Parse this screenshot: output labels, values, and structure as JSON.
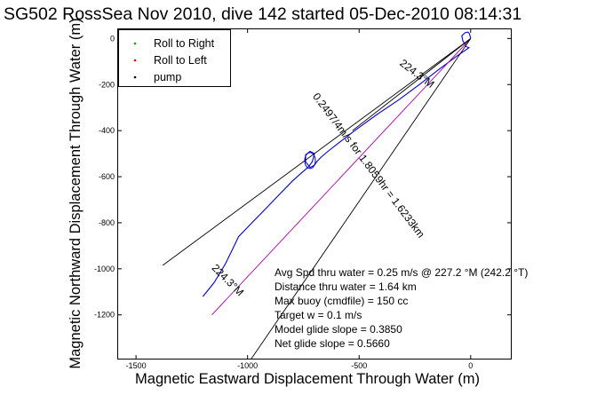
{
  "chart_data": {
    "type": "line",
    "title": "SG502 RossSea Nov 2010, dive 142 started 05-Dec-2010 08:14:31",
    "xlabel": "Magnetic Eastward Displacement Through Water (m)",
    "ylabel": "Magnetic Northward Displacement Through Water (m)",
    "xlim": [
      -1580,
      180
    ],
    "ylim": [
      -1390,
      40
    ],
    "xticks": [
      -1500,
      -1000,
      -500,
      0
    ],
    "yticks": [
      0,
      -200,
      -400,
      -600,
      -800,
      -1000,
      -1200
    ],
    "grid": false,
    "legend": {
      "position": "top-left",
      "entries": [
        {
          "label": "Roll to Right",
          "color": "#00aa00",
          "marker": "dot"
        },
        {
          "label": "Roll to Left",
          "color": "#ff0000",
          "marker": "dot"
        },
        {
          "label": "pump",
          "color": "#000000",
          "marker": "dot"
        }
      ]
    },
    "series": [
      {
        "color": "#0000cc",
        "x": [
          0,
          -5,
          -12,
          -25,
          -40,
          -35,
          -20,
          -8,
          -60,
          -150,
          -230,
          -320,
          -420,
          -470,
          -520,
          -560,
          -600,
          -640,
          -670,
          -690,
          -700,
          -720,
          -740,
          -740,
          -720,
          -700,
          -710,
          -730,
          -760,
          -800,
          -860,
          -920,
          -980,
          -1040,
          -1070,
          -1100,
          -1150,
          -1200
        ],
        "y": [
          0,
          20,
          28,
          25,
          12,
          -10,
          -35,
          -40,
          -75,
          -140,
          -200,
          -265,
          -330,
          -365,
          -400,
          -430,
          -460,
          -490,
          -515,
          -535,
          -550,
          -560,
          -535,
          -505,
          -490,
          -500,
          -535,
          -560,
          -585,
          -620,
          -680,
          -740,
          -800,
          -860,
          -920,
          -980,
          -1060,
          -1120
        ]
      },
      {
        "color": "#aa00aa",
        "x": [
          0,
          -1160
        ],
        "y": [
          0,
          -1200
        ]
      },
      {
        "color": "#000000",
        "x": [
          0,
          -1380
        ],
        "y": [
          0,
          -985
        ]
      },
      {
        "color": "#000000",
        "x": [
          0,
          -990
        ],
        "y": [
          0,
          -1400
        ]
      },
      {
        "color": "#000000",
        "x": [
          0,
          -530
        ],
        "y": [
          0,
          -400
        ]
      }
    ],
    "track_labels": [
      {
        "text": "224.3°M",
        "x": -250,
        "y": -165,
        "angle": 37
      },
      {
        "text": "0.2497/4m/s for 1.8059hr = 1.6233km",
        "x": -470,
        "y": -560,
        "angle": 53
      },
      {
        "text": "224.3°M",
        "x": -1100,
        "y": -1060,
        "angle": 45
      }
    ],
    "annotations": [
      "Avg Spd thru water =  0.25 m/s @ 227.2   °M (242.2 °T)",
      "Distance thru water =  1.64 km",
      "Max buoy (cmdfile) = 150 cc",
      "Target w = 0.1 m/s",
      "Model glide slope = 0.3850",
      "Net glide slope = 0.5660"
    ]
  }
}
